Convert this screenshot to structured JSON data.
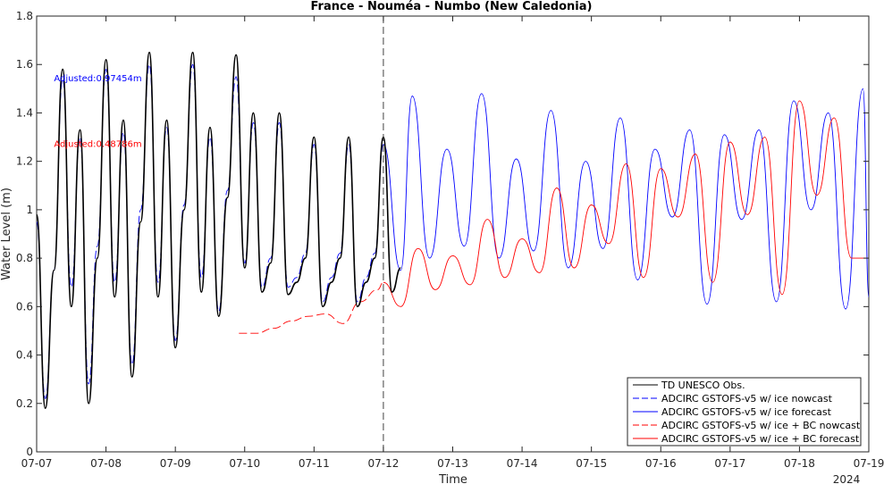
{
  "chart_data": {
    "type": "line",
    "title": "France - Nouméa - Numbo (New Caledonia)",
    "xlabel": "Time",
    "ylabel": "Water Level (m)",
    "year_label": "2024",
    "xlim": [
      "2024-07-07",
      "2024-07-19"
    ],
    "ylim": [
      0,
      1.8
    ],
    "xticks": [
      "07-07",
      "07-08",
      "07-09",
      "07-10",
      "07-11",
      "07-12",
      "07-13",
      "07-14",
      "07-15",
      "07-16",
      "07-17",
      "07-18",
      "07-19"
    ],
    "yticks": [
      "0",
      "0.2",
      "0.4",
      "0.6",
      "0.8",
      "1",
      "1.2",
      "1.4",
      "1.6",
      "1.8"
    ],
    "nowcast_forecast_boundary": "2024-07-12",
    "grid": false,
    "legend_position": "bottom-right",
    "annotations": [
      {
        "text": "Adjusted:0.97454m",
        "color": "#0000ff",
        "x": "2024-07-07 06:00",
        "y": 1.53
      },
      {
        "text": "Adjusted:0.48786m",
        "color": "#ff0000",
        "x": "2024-07-07 06:00",
        "y": 1.26
      }
    ],
    "series": [
      {
        "name": "TD UNESCO Obs.",
        "color": "#000000",
        "style": "solid",
        "x": [
          "2024-07-07 00:00",
          "2024-07-07 03:00",
          "2024-07-07 06:00",
          "2024-07-07 09:00",
          "2024-07-07 12:00",
          "2024-07-07 15:00",
          "2024-07-07 18:00",
          "2024-07-07 21:00",
          "2024-07-08 00:00",
          "2024-07-08 03:00",
          "2024-07-08 06:00",
          "2024-07-08 09:00",
          "2024-07-08 12:00",
          "2024-07-08 15:00",
          "2024-07-08 18:00",
          "2024-07-08 21:00",
          "2024-07-09 00:00",
          "2024-07-09 03:00",
          "2024-07-09 06:00",
          "2024-07-09 09:00",
          "2024-07-09 12:00",
          "2024-07-09 15:00",
          "2024-07-09 18:00",
          "2024-07-09 21:00",
          "2024-07-10 00:00",
          "2024-07-10 03:00",
          "2024-07-10 06:00",
          "2024-07-10 09:00",
          "2024-07-10 12:00",
          "2024-07-10 15:00",
          "2024-07-10 18:00",
          "2024-07-10 21:00",
          "2024-07-11 00:00",
          "2024-07-11 03:00",
          "2024-07-11 06:00",
          "2024-07-11 09:00",
          "2024-07-11 12:00",
          "2024-07-11 15:00",
          "2024-07-11 18:00",
          "2024-07-11 21:00",
          "2024-07-12 00:00",
          "2024-07-12 03:00",
          "2024-07-12 06:00"
        ],
        "y": [
          0.98,
          0.18,
          0.75,
          1.58,
          0.6,
          1.33,
          0.2,
          0.8,
          1.62,
          0.64,
          1.37,
          0.31,
          0.95,
          1.65,
          0.64,
          1.37,
          0.43,
          1.0,
          1.65,
          0.66,
          1.34,
          0.56,
          1.05,
          1.64,
          0.76,
          1.4,
          0.66,
          0.78,
          1.4,
          0.65,
          0.7,
          0.8,
          1.3,
          0.6,
          0.7,
          0.8,
          1.3,
          0.6,
          0.7,
          0.8,
          1.3,
          0.66,
          0.76
        ]
      },
      {
        "name": "ADCIRC GSTOFS-v5 w/ ice nowcast",
        "color": "#0000ff",
        "style": "dashed",
        "x": [
          "2024-07-07 00:00",
          "2024-07-07 03:00",
          "2024-07-07 06:00",
          "2024-07-07 09:00",
          "2024-07-07 12:00",
          "2024-07-07 15:00",
          "2024-07-07 18:00",
          "2024-07-07 21:00",
          "2024-07-08 00:00",
          "2024-07-08 03:00",
          "2024-07-08 06:00",
          "2024-07-08 09:00",
          "2024-07-08 12:00",
          "2024-07-08 15:00",
          "2024-07-08 18:00",
          "2024-07-08 21:00",
          "2024-07-09 00:00",
          "2024-07-09 03:00",
          "2024-07-09 06:00",
          "2024-07-09 09:00",
          "2024-07-09 12:00",
          "2024-07-09 15:00",
          "2024-07-09 18:00",
          "2024-07-09 21:00",
          "2024-07-10 00:00",
          "2024-07-10 03:00",
          "2024-07-10 06:00",
          "2024-07-10 09:00",
          "2024-07-10 12:00",
          "2024-07-10 15:00",
          "2024-07-10 18:00",
          "2024-07-10 21:00",
          "2024-07-11 00:00",
          "2024-07-11 03:00",
          "2024-07-11 06:00",
          "2024-07-11 09:00",
          "2024-07-11 12:00",
          "2024-07-11 15:00",
          "2024-07-11 18:00",
          "2024-07-11 21:00",
          "2024-07-12 00:00"
        ],
        "y": [
          0.95,
          0.22,
          0.75,
          1.54,
          0.68,
          1.3,
          0.28,
          0.85,
          1.58,
          0.7,
          1.32,
          0.36,
          1.0,
          1.6,
          0.7,
          1.34,
          0.46,
          1.02,
          1.6,
          0.72,
          1.3,
          0.58,
          1.08,
          1.55,
          0.78,
          1.36,
          0.68,
          0.8,
          1.36,
          0.68,
          0.72,
          0.82,
          1.27,
          0.62,
          0.72,
          0.82,
          1.27,
          0.62,
          0.72,
          0.82,
          1.27
        ]
      },
      {
        "name": "ADCIRC GSTOFS-v5 w/ ice forecast",
        "color": "#0000ff",
        "style": "solid",
        "x": [
          "2024-07-12 00:00",
          "2024-07-12 06:00",
          "2024-07-12 10:00",
          "2024-07-12 16:00",
          "2024-07-12 22:00",
          "2024-07-13 04:00",
          "2024-07-13 10:00",
          "2024-07-13 16:00",
          "2024-07-13 22:00",
          "2024-07-14 04:00",
          "2024-07-14 10:00",
          "2024-07-14 16:00",
          "2024-07-14 22:00",
          "2024-07-15 04:00",
          "2024-07-15 10:00",
          "2024-07-15 16:00",
          "2024-07-15 22:00",
          "2024-07-16 04:00",
          "2024-07-16 10:00",
          "2024-07-16 16:00",
          "2024-07-16 22:00",
          "2024-07-17 04:00",
          "2024-07-17 10:00",
          "2024-07-17 16:00",
          "2024-07-17 22:00",
          "2024-07-18 04:00",
          "2024-07-18 10:00",
          "2024-07-18 16:00",
          "2024-07-18 22:00",
          "2024-07-19 00:00"
        ],
        "y": [
          1.27,
          0.75,
          1.47,
          0.8,
          1.25,
          0.85,
          1.48,
          0.8,
          1.21,
          0.83,
          1.41,
          0.76,
          1.2,
          0.84,
          1.38,
          0.71,
          1.25,
          0.97,
          1.33,
          0.61,
          1.31,
          0.96,
          1.33,
          0.62,
          1.45,
          1.0,
          1.4,
          0.59,
          1.5,
          0.64
        ]
      },
      {
        "name": "ADCIRC GSTOFS-v5 w/ ice + BC nowcast",
        "color": "#ff0000",
        "style": "dashed",
        "x": [
          "2024-07-09 22:00",
          "2024-07-10 04:00",
          "2024-07-10 10:00",
          "2024-07-10 16:00",
          "2024-07-10 22:00",
          "2024-07-11 04:00",
          "2024-07-11 10:00",
          "2024-07-11 16:00",
          "2024-07-11 22:00",
          "2024-07-12 00:00"
        ],
        "y": [
          0.49,
          0.49,
          0.51,
          0.54,
          0.56,
          0.57,
          0.53,
          0.62,
          0.67,
          0.7
        ]
      },
      {
        "name": "ADCIRC GSTOFS-v5 w/ ice + BC forecast",
        "color": "#ff0000",
        "style": "solid",
        "x": [
          "2024-07-12 00:00",
          "2024-07-12 06:00",
          "2024-07-12 12:00",
          "2024-07-12 18:00",
          "2024-07-13 00:00",
          "2024-07-13 06:00",
          "2024-07-13 12:00",
          "2024-07-13 18:00",
          "2024-07-14 00:00",
          "2024-07-14 06:00",
          "2024-07-14 12:00",
          "2024-07-14 18:00",
          "2024-07-15 00:00",
          "2024-07-15 06:00",
          "2024-07-15 12:00",
          "2024-07-15 18:00",
          "2024-07-16 00:00",
          "2024-07-16 06:00",
          "2024-07-16 12:00",
          "2024-07-16 18:00",
          "2024-07-17 00:00",
          "2024-07-17 06:00",
          "2024-07-17 12:00",
          "2024-07-17 18:00",
          "2024-07-18 00:00",
          "2024-07-18 06:00",
          "2024-07-18 12:00",
          "2024-07-18 18:00",
          "2024-07-19 00:00"
        ],
        "y": [
          0.7,
          0.6,
          0.84,
          0.67,
          0.81,
          0.69,
          0.96,
          0.72,
          0.88,
          0.74,
          1.09,
          0.76,
          1.02,
          0.86,
          1.19,
          0.72,
          1.17,
          0.97,
          1.23,
          0.7,
          1.28,
          0.98,
          1.3,
          0.65,
          1.45,
          1.06,
          1.38,
          0.8,
          0.8
        ]
      }
    ]
  }
}
